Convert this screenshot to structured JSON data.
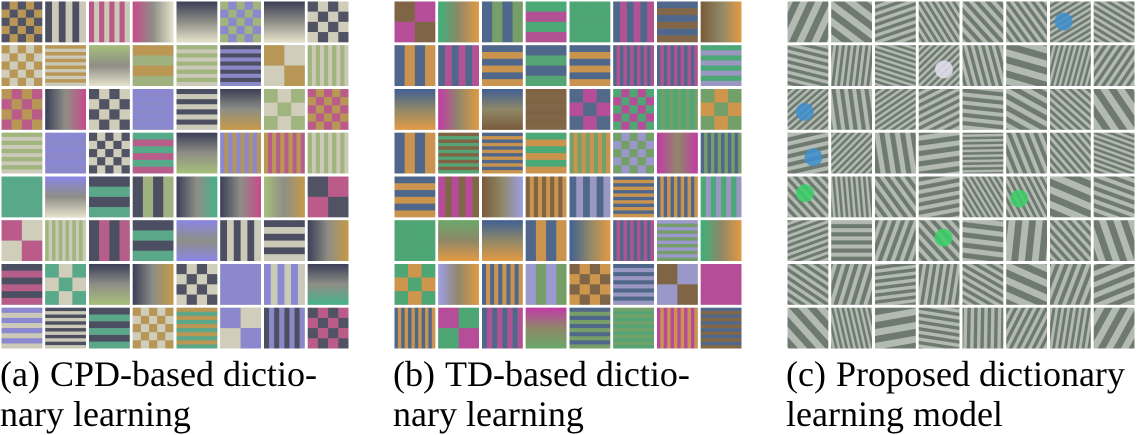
{
  "figure": {
    "panels": [
      {
        "id": "a",
        "label": "(a)",
        "caption": "CPD-based dictio-nary learning",
        "caption_line1": "CPD-based dictio-",
        "caption_line2": "nary learning",
        "palette": {
          "grey": "#8e8e86",
          "dark": "#3c3f58",
          "light": "#e6e3cc",
          "accent1": "#8a86e6",
          "accent2": "#c59a46",
          "accent3": "#a6c07a",
          "accent4": "#c84a8a",
          "accent5": "#46b28a"
        },
        "style": "mixed"
      },
      {
        "id": "b",
        "label": "(b)",
        "caption": "TD-based dictio-nary learning",
        "caption_line1": "TD-based dictio-",
        "caption_line2": "nary learning",
        "palette": {
          "grey": "#8f8868",
          "dark": "#3f5f94",
          "light": "#e39a44",
          "accent1": "#9e9ee8",
          "accent2": "#7a5a3a",
          "accent3": "#c23aa8",
          "accent4": "#3ab07a",
          "accent5": "#6aa86a"
        },
        "style": "checker"
      },
      {
        "id": "c",
        "label": "(c)",
        "caption": "Proposed dictionary learning model",
        "caption_line1": "Proposed dictionary",
        "caption_line2": "learning model",
        "palette": {
          "grey": "#8a9488",
          "dark": "#4c5c50",
          "light": "#d2d8d2",
          "accent1": "#e3e1ee",
          "accent2": "#3e8fd0",
          "accent3": "#d98a2a",
          "accent4": "#d22ab0",
          "accent5": "#3ad06a"
        },
        "style": "gabor"
      }
    ],
    "grid_rows": 8,
    "grid_cols": 8
  }
}
